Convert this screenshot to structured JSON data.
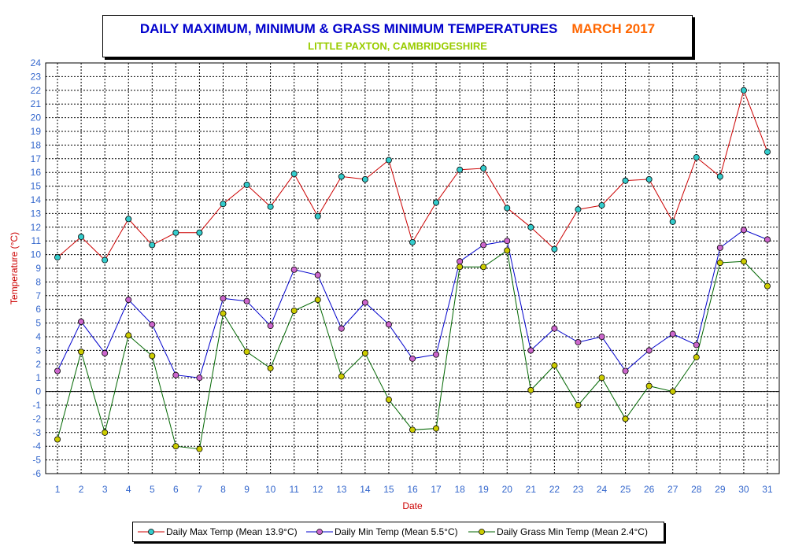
{
  "title": {
    "main": "DAILY MAXIMUM, MINIMUM & GRASS MINIMUM TEMPERATURES",
    "month": "MARCH 2017",
    "subtitle": "LITTLE PAXTON, CAMBRIDGESHIRE"
  },
  "colors": {
    "max_line": "#cc0000",
    "max_marker": "#33cccc",
    "min_line": "#0000cc",
    "min_marker": "#cc66cc",
    "grass_line": "#006600",
    "grass_marker": "#cccc00",
    "tick_text": "#3366cc",
    "axis_label": "#cc0000"
  },
  "legend": [
    {
      "label": "Daily Max Temp (Mean 13.9°C)"
    },
    {
      "label": "Daily Min Temp (Mean 5.5°C)"
    },
    {
      "label": "Daily Grass Min Temp (Mean 2.4°C)"
    }
  ],
  "chart_data": {
    "type": "line",
    "title": "DAILY MAXIMUM, MINIMUM & GRASS MINIMUM TEMPERATURES",
    "xlabel": "Date",
    "ylabel": "Temperature (°C)",
    "ylim": [
      -6,
      24
    ],
    "yticks": [
      -6,
      -5,
      -4,
      -3,
      -2,
      -1,
      0,
      1,
      2,
      3,
      4,
      5,
      6,
      7,
      8,
      9,
      10,
      11,
      12,
      13,
      14,
      15,
      16,
      17,
      18,
      19,
      20,
      21,
      22,
      23,
      24
    ],
    "grid": true,
    "legend_position": "bottom",
    "x": [
      1,
      2,
      3,
      4,
      5,
      6,
      7,
      8,
      9,
      10,
      11,
      12,
      13,
      14,
      15,
      16,
      17,
      18,
      19,
      20,
      21,
      22,
      23,
      24,
      25,
      26,
      27,
      28,
      29,
      30,
      31
    ],
    "series": [
      {
        "name": "Daily Max Temp (Mean 13.9°C)",
        "values": [
          9.8,
          11.3,
          9.6,
          12.6,
          10.7,
          11.6,
          11.6,
          13.7,
          15.1,
          13.5,
          15.9,
          12.8,
          15.7,
          15.5,
          16.9,
          10.9,
          13.8,
          16.2,
          16.3,
          13.4,
          12.0,
          10.4,
          13.3,
          13.6,
          15.4,
          15.5,
          12.4,
          17.1,
          15.7,
          22.0,
          17.5
        ]
      },
      {
        "name": "Daily Min Temp (Mean 5.5°C)",
        "values": [
          1.5,
          5.1,
          2.8,
          6.7,
          4.9,
          1.2,
          1.0,
          6.8,
          6.6,
          4.8,
          8.9,
          8.5,
          4.6,
          6.5,
          4.9,
          2.4,
          2.7,
          9.5,
          10.7,
          11.0,
          3.0,
          4.6,
          3.6,
          4.0,
          1.5,
          3.0,
          4.2,
          3.4,
          10.5,
          11.8,
          11.1
        ]
      },
      {
        "name": "Daily Grass Min Temp (Mean 2.4°C)",
        "values": [
          -3.5,
          2.9,
          -3.0,
          4.1,
          2.6,
          -4.0,
          -4.2,
          5.7,
          2.9,
          1.7,
          5.9,
          6.7,
          1.1,
          2.8,
          -0.6,
          -2.8,
          -2.7,
          9.1,
          9.1,
          10.3,
          0.1,
          1.9,
          -1.0,
          1.0,
          -2.0,
          0.4,
          0.0,
          2.5,
          9.4,
          9.5,
          7.7
        ]
      }
    ]
  }
}
